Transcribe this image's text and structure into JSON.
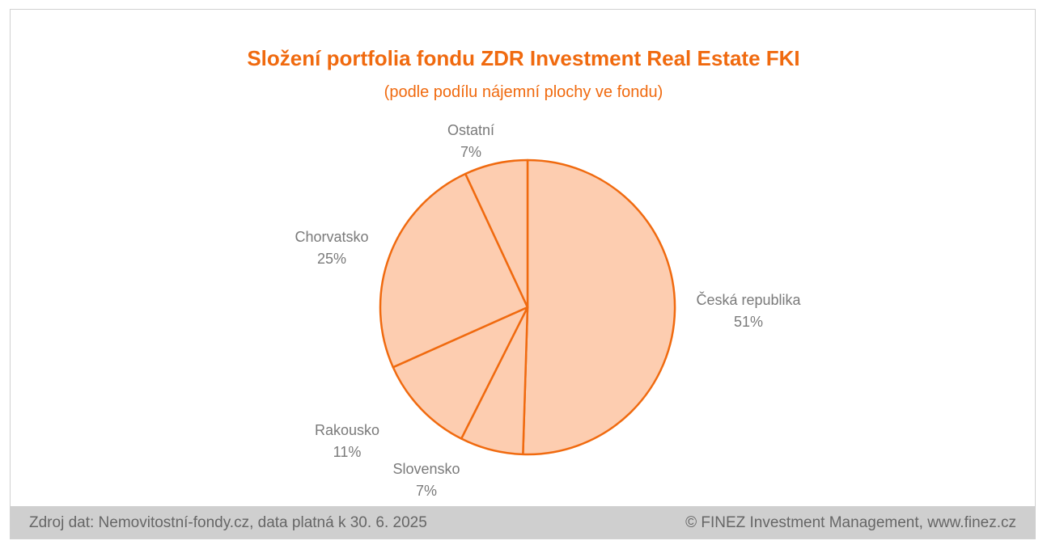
{
  "chart_data": {
    "type": "pie",
    "title": "Složení portfolia fondu ZDR Investment Real Estate FKI",
    "subtitle": "(podle podílu nájemní plochy ve fondu)",
    "slices": [
      {
        "label": "Česká republika",
        "value": 51,
        "value_label": "51%"
      },
      {
        "label": "Slovensko",
        "value": 7,
        "value_label": "7%"
      },
      {
        "label": "Rakousko",
        "value": 11,
        "value_label": "11%"
      },
      {
        "label": "Chorvatsko",
        "value": 25,
        "value_label": "25%"
      },
      {
        "label": "Ostatní",
        "value": 7,
        "value_label": "7%"
      }
    ],
    "colors": {
      "fill": "#fdcdb0",
      "stroke": "#f06a0f",
      "title": "#f06a0f",
      "label": "#7a7a7a"
    }
  },
  "footer": {
    "source": "Zdroj dat: Nemovitostní-fondy.cz, data platná k 30. 6. 2025",
    "copyright": "© FINEZ Investment Management, www.finez.cz"
  }
}
